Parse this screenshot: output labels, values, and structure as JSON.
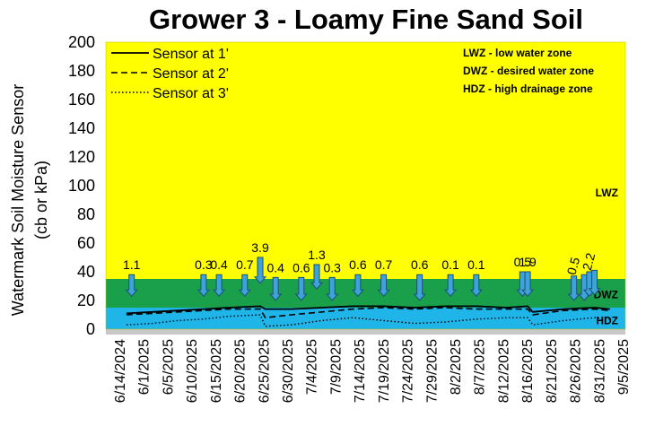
{
  "chart_data": {
    "type": "line",
    "title": "Grower 3 - Loamy Fine Sand Soil",
    "ylabel_line1": "Watermark Soil Moisture Sensor",
    "ylabel_line2": "(cb or kPa)",
    "ylim": [
      0,
      200
    ],
    "yticks": [
      0,
      20,
      40,
      60,
      80,
      100,
      120,
      140,
      160,
      180,
      200
    ],
    "xlim": [
      "2025-05-27",
      "2025-09-05"
    ],
    "xtick_labels": [
      "6/14/2024",
      "6/1/2025",
      "6/5/2025",
      "6/10/2025",
      "6/15/2025",
      "6/20/2025",
      "6/25/2025",
      "6/30/2025",
      "7/4/2025",
      "7/9/2025",
      "7/14/2025",
      "7/19/2025",
      "7/24/2025",
      "7/29/2025",
      "8/2/2025",
      "8/7/2025",
      "8/12/2025",
      "8/16/2025",
      "8/21/2025",
      "8/26/2025",
      "8/31/2025",
      "9/5/2025"
    ],
    "zones": [
      {
        "name": "HDZ",
        "from": 0,
        "to": 15,
        "color": "#1fb5e8"
      },
      {
        "name": "DWZ",
        "from": 15,
        "to": 35,
        "color": "#1aa04a"
      },
      {
        "name": "LWZ",
        "from": 35,
        "to": 200,
        "color": "#ffff00"
      }
    ],
    "legend": [
      "Sensor at 1'",
      "Sensor at 2'",
      "Sensor at 3'"
    ],
    "notes": [
      "LWZ  - low water zone",
      "DWZ - desired water zone",
      "HDZ - high drainage zone"
    ],
    "series": [
      {
        "name": "Sensor at 1'",
        "style": "solid",
        "x": [
          "2025-05-31",
          "2025-06-05",
          "2025-06-10",
          "2025-06-15",
          "2025-06-20",
          "2025-06-26",
          "2025-06-27",
          "2025-07-02",
          "2025-07-08",
          "2025-07-14",
          "2025-07-20",
          "2025-07-26",
          "2025-08-01",
          "2025-08-07",
          "2025-08-13",
          "2025-08-17",
          "2025-08-18",
          "2025-08-24",
          "2025-08-30",
          "2025-09-02"
        ],
        "y": [
          11,
          12,
          13,
          14,
          15,
          16,
          14,
          14,
          15,
          16,
          16,
          15,
          16,
          16,
          15,
          16,
          12,
          14,
          15,
          14
        ]
      },
      {
        "name": "Sensor at 2'",
        "style": "dashed",
        "x": [
          "2025-05-31",
          "2025-06-05",
          "2025-06-10",
          "2025-06-15",
          "2025-06-20",
          "2025-06-26",
          "2025-06-27",
          "2025-07-02",
          "2025-07-08",
          "2025-07-14",
          "2025-07-20",
          "2025-07-26",
          "2025-08-01",
          "2025-08-07",
          "2025-08-13",
          "2025-08-17",
          "2025-08-18",
          "2025-08-24",
          "2025-08-30",
          "2025-09-02"
        ],
        "y": [
          10,
          11,
          12,
          13,
          14,
          14,
          8,
          10,
          12,
          14,
          15,
          14,
          15,
          14,
          14,
          14,
          10,
          13,
          14,
          13
        ]
      },
      {
        "name": "Sensor at 3'",
        "style": "dotted",
        "x": [
          "2025-05-31",
          "2025-06-05",
          "2025-06-10",
          "2025-06-15",
          "2025-06-20",
          "2025-06-26",
          "2025-06-27",
          "2025-07-02",
          "2025-07-08",
          "2025-07-14",
          "2025-07-20",
          "2025-07-26",
          "2025-08-01",
          "2025-08-07",
          "2025-08-13",
          "2025-08-17",
          "2025-08-18",
          "2025-08-24",
          "2025-08-30",
          "2025-09-02"
        ],
        "y": [
          3,
          4,
          6,
          7,
          9,
          10,
          2,
          3,
          6,
          8,
          6,
          4,
          5,
          7,
          8,
          8,
          3,
          6,
          8,
          7
        ]
      }
    ],
    "irrigation_events": [
      {
        "date": "2025-06-01",
        "label": "1.1",
        "from": 38,
        "to": 23
      },
      {
        "date": "2025-06-15",
        "label": "0.3",
        "from": 38,
        "to": 23
      },
      {
        "date": "2025-06-18",
        "label": "0.4",
        "from": 38,
        "to": 23
      },
      {
        "date": "2025-06-23",
        "label": "0.7",
        "from": 38,
        "to": 23
      },
      {
        "date": "2025-06-26",
        "label": "3.9",
        "from": 50,
        "to": 32
      },
      {
        "date": "2025-06-29",
        "label": "0.4",
        "from": 36,
        "to": 20
      },
      {
        "date": "2025-07-04",
        "label": "0.6",
        "from": 36,
        "to": 20
      },
      {
        "date": "2025-07-07",
        "label": "1.3",
        "from": 45,
        "to": 28
      },
      {
        "date": "2025-07-10",
        "label": "0.3",
        "from": 36,
        "to": 20
      },
      {
        "date": "2025-07-15",
        "label": "0.6",
        "from": 38,
        "to": 23
      },
      {
        "date": "2025-07-20",
        "label": "0.7",
        "from": 38,
        "to": 23
      },
      {
        "date": "2025-07-27",
        "label": "0.6",
        "from": 38,
        "to": 20
      },
      {
        "date": "2025-08-02",
        "label": "0.1",
        "from": 38,
        "to": 23
      },
      {
        "date": "2025-08-07",
        "label": "0.1",
        "from": 38,
        "to": 23
      },
      {
        "date": "2025-08-16",
        "label": "0.5",
        "from": 40,
        "to": 23
      },
      {
        "date": "2025-08-17",
        "label": "1.9",
        "from": 40,
        "to": 23
      },
      {
        "date": "2025-08-26",
        "label": "0.5",
        "from": 37,
        "to": 20
      },
      {
        "date": "2025-08-28",
        "label": "",
        "from": 38,
        "to": 20
      },
      {
        "date": "2025-08-29",
        "label": "2.2",
        "from": 40,
        "to": 23
      },
      {
        "date": "2025-08-30",
        "label": "",
        "from": 41,
        "to": 24
      }
    ],
    "colors": {
      "arrow_fill": "#3da3d8",
      "arrow_stroke": "#1f4e79",
      "floor": "#c8c8c8"
    }
  }
}
